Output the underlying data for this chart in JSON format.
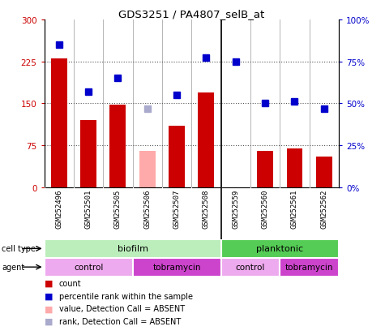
{
  "title": "GDS3251 / PA4807_selB_at",
  "samples": [
    "GSM252496",
    "GSM252501",
    "GSM252505",
    "GSM252506",
    "GSM252507",
    "GSM252508",
    "GSM252559",
    "GSM252560",
    "GSM252561",
    "GSM252562"
  ],
  "bar_values": [
    230,
    120,
    148,
    null,
    110,
    170,
    null,
    65,
    70,
    55
  ],
  "bar_absent_values": [
    null,
    null,
    null,
    65,
    null,
    null,
    null,
    null,
    null,
    null
  ],
  "dot_values": [
    85,
    57,
    65,
    null,
    55,
    77,
    75,
    50,
    51,
    47
  ],
  "dot_absent_values": [
    null,
    null,
    null,
    47,
    null,
    null,
    null,
    null,
    null,
    null
  ],
  "bar_color": "#cc0000",
  "bar_absent_color": "#ffaaaa",
  "dot_color": "#0000cc",
  "dot_absent_color": "#aaaacc",
  "ylim_left": [
    0,
    300
  ],
  "ylim_right": [
    0,
    100
  ],
  "yticks_left": [
    0,
    75,
    150,
    225,
    300
  ],
  "yticks_right": [
    0,
    25,
    50,
    75,
    100
  ],
  "ytick_labels_left": [
    "0",
    "75",
    "150",
    "225",
    "300"
  ],
  "ytick_labels_right": [
    "0%",
    "25%",
    "50%",
    "75%",
    "100%"
  ],
  "cell_type_color_light": "#bbeebb",
  "cell_type_color_dark": "#55cc55",
  "agent_color_light": "#eeaaee",
  "agent_color_dark": "#cc44cc",
  "col_sep_color": "#aaaaaa",
  "grid_color": "#555555",
  "sample_bg_color": "#cccccc",
  "legend_items": [
    {
      "label": "count",
      "color": "#cc0000"
    },
    {
      "label": "percentile rank within the sample",
      "color": "#0000cc"
    },
    {
      "label": "value, Detection Call = ABSENT",
      "color": "#ffaaaa"
    },
    {
      "label": "rank, Detection Call = ABSENT",
      "color": "#aaaacc"
    }
  ]
}
